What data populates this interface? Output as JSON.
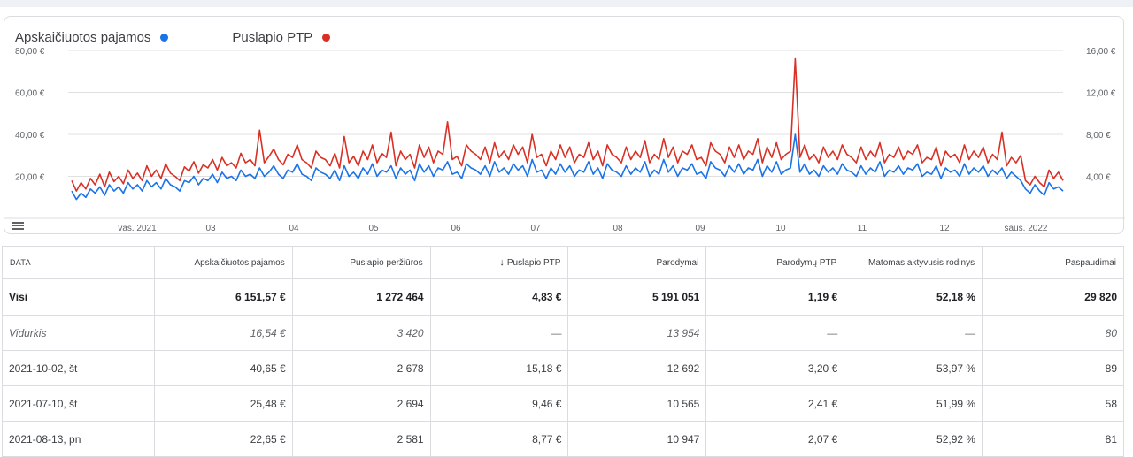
{
  "legend": [
    {
      "label": "Apskaičiuotos pajamos",
      "color": "#1a73e8"
    },
    {
      "label": "Puslapio PTP",
      "color": "#d93025"
    }
  ],
  "chart_data": {
    "type": "line",
    "y_left_ticks": [
      "80,00 €",
      "60,00 €",
      "40,00 €",
      "20,00 €"
    ],
    "y_right_ticks": [
      "16,00 €",
      "12,00 €",
      "8,00 €",
      "4,00 €"
    ],
    "x_ticks": [
      "vas. 2021",
      "03",
      "04",
      "05",
      "06",
      "07",
      "08",
      "09",
      "10",
      "11",
      "12",
      "saus. 2022"
    ],
    "ylim_left": [
      0,
      80
    ],
    "ylim_right": [
      0,
      16
    ],
    "grid": true,
    "series": [
      {
        "name": "Apskaičiuotos pajamos",
        "color": "#1a73e8",
        "axis": "left",
        "values": [
          13,
          9,
          12,
          10,
          14,
          12,
          15,
          11,
          16,
          13,
          15,
          12,
          17,
          14,
          16,
          13,
          18,
          15,
          17,
          14,
          19,
          16,
          15,
          13,
          18,
          17,
          20,
          16,
          19,
          18,
          21,
          17,
          22,
          19,
          20,
          18,
          23,
          20,
          21,
          19,
          24,
          20,
          22,
          25,
          21,
          19,
          23,
          22,
          26,
          21,
          20,
          18,
          24,
          22,
          21,
          19,
          23,
          18,
          25,
          20,
          22,
          19,
          24,
          21,
          26,
          20,
          23,
          22,
          25,
          19,
          24,
          21,
          23,
          18,
          26,
          22,
          25,
          20,
          24,
          23,
          27,
          21,
          22,
          19,
          26,
          24,
          23,
          21,
          25,
          20,
          27,
          22,
          24,
          21,
          26,
          23,
          25,
          20,
          28,
          22,
          23,
          19,
          24,
          21,
          26,
          22,
          25,
          20,
          23,
          22,
          27,
          21,
          24,
          19,
          26,
          23,
          22,
          20,
          25,
          21,
          24,
          22,
          27,
          20,
          23,
          21,
          28,
          22,
          25,
          20,
          24,
          23,
          26,
          21,
          22,
          19,
          27,
          24,
          23,
          20,
          25,
          22,
          26,
          21,
          24,
          23,
          28,
          20,
          25,
          22,
          27,
          21,
          23,
          24,
          40,
          22,
          26,
          21,
          23,
          20,
          25,
          22,
          24,
          21,
          26,
          23,
          22,
          20,
          25,
          21,
          24,
          22,
          27,
          20,
          23,
          22,
          25,
          21,
          24,
          23,
          26,
          20,
          22,
          21,
          25,
          19,
          24,
          22,
          23,
          20,
          26,
          21,
          24,
          22,
          25,
          20,
          23,
          21,
          24,
          19,
          22,
          20,
          18,
          14,
          12,
          16,
          13,
          11,
          17,
          14,
          15,
          13
        ]
      },
      {
        "name": "Puslapio PTP",
        "color": "#d93025",
        "axis": "right",
        "values": [
          3.6,
          2.6,
          3.4,
          2.8,
          3.8,
          3.2,
          4.2,
          3.0,
          4.4,
          3.5,
          4.0,
          3.3,
          4.6,
          3.8,
          4.3,
          3.6,
          5.0,
          4.0,
          4.6,
          3.8,
          5.2,
          4.3,
          4.0,
          3.6,
          4.9,
          4.5,
          5.4,
          4.3,
          5.1,
          4.8,
          5.6,
          4.6,
          5.8,
          5.0,
          5.3,
          4.8,
          6.2,
          5.3,
          5.6,
          5.0,
          8.4,
          5.3,
          5.9,
          6.6,
          5.6,
          5.1,
          6.1,
          5.8,
          7.0,
          5.6,
          5.3,
          4.8,
          6.4,
          5.8,
          5.6,
          5.0,
          6.2,
          4.8,
          7.8,
          5.3,
          5.9,
          5.0,
          6.4,
          5.6,
          7.0,
          5.3,
          6.2,
          5.8,
          8.2,
          5.0,
          6.4,
          5.6,
          6.1,
          4.8,
          7.0,
          5.8,
          6.8,
          5.3,
          6.4,
          6.1,
          9.2,
          5.6,
          5.9,
          5.0,
          7.0,
          6.4,
          6.1,
          5.6,
          6.8,
          5.3,
          7.2,
          5.8,
          6.4,
          5.6,
          7.0,
          6.1,
          6.8,
          5.3,
          8.0,
          5.8,
          6.1,
          5.0,
          6.4,
          5.6,
          7.0,
          5.8,
          6.8,
          5.3,
          6.1,
          5.8,
          7.2,
          5.6,
          6.4,
          5.0,
          7.0,
          6.1,
          5.8,
          5.3,
          6.8,
          5.6,
          6.4,
          5.8,
          7.4,
          5.3,
          6.1,
          5.6,
          7.6,
          5.8,
          6.8,
          5.3,
          6.4,
          6.1,
          7.0,
          5.6,
          5.8,
          5.0,
          7.2,
          6.4,
          6.1,
          5.3,
          6.8,
          5.8,
          7.0,
          5.6,
          6.4,
          6.1,
          7.6,
          5.3,
          6.8,
          5.8,
          7.2,
          5.6,
          6.1,
          6.4,
          15.2,
          5.8,
          7.0,
          5.6,
          6.1,
          5.3,
          6.8,
          5.8,
          6.4,
          5.6,
          7.0,
          6.1,
          5.8,
          5.3,
          6.8,
          5.6,
          6.4,
          5.8,
          7.2,
          5.3,
          6.1,
          5.8,
          6.8,
          5.6,
          6.4,
          6.1,
          7.0,
          5.3,
          5.8,
          5.6,
          6.8,
          5.0,
          6.4,
          5.8,
          6.1,
          5.3,
          7.0,
          5.6,
          6.4,
          5.8,
          6.8,
          5.3,
          6.1,
          5.6,
          8.2,
          5.0,
          5.8,
          5.3,
          6.0,
          3.6,
          3.2,
          4.0,
          3.4,
          3.0,
          4.6,
          3.8,
          4.4,
          3.6
        ]
      }
    ]
  },
  "table": {
    "headers": [
      "DATA",
      "Apskaičiuotos pajamos",
      "Puslapio peržiūros",
      "Puslapio PTP",
      "Parodymai",
      "Parodymų PTP",
      "Matomas aktyvusis rodinys",
      "Paspaudimai"
    ],
    "sort_arrow": "↓",
    "total": [
      "Visi",
      "6 151,57 €",
      "1 272 464",
      "4,83 €",
      "5 191 051",
      "1,19 €",
      "52,18 %",
      "29 820"
    ],
    "average": [
      "Vidurkis",
      "16,54 €",
      "3 420",
      "—",
      "13 954",
      "—",
      "—",
      "80"
    ],
    "rows": [
      [
        "2021-10-02, št",
        "40,65 €",
        "2 678",
        "15,18 €",
        "12 692",
        "3,20 €",
        "53,97 %",
        "89"
      ],
      [
        "2021-07-10, št",
        "25,48 €",
        "2 694",
        "9,46 €",
        "10 565",
        "2,41 €",
        "51,99 %",
        "58"
      ],
      [
        "2021-08-13, pn",
        "22,65 €",
        "2 581",
        "8,77 €",
        "10 947",
        "2,07 €",
        "52,92 %",
        "81"
      ]
    ]
  }
}
